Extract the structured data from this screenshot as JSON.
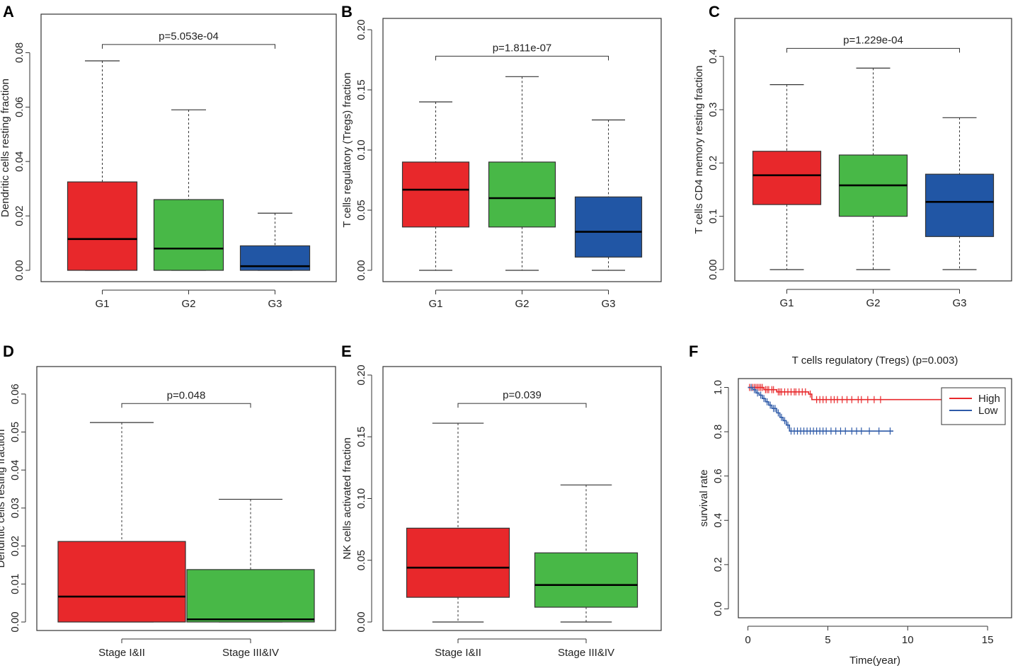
{
  "figure": {
    "panels": [
      {
        "letter": "A"
      },
      {
        "letter": "B"
      },
      {
        "letter": "C"
      },
      {
        "letter": "D"
      },
      {
        "letter": "E"
      },
      {
        "letter": "F"
      }
    ]
  },
  "colors": {
    "red": "#e8282b",
    "green": "#48b847",
    "blue": "#2156a5",
    "line_high": "#e8282b",
    "line_low": "#2e5aa8"
  },
  "chart_data": [
    {
      "panel": "A",
      "type": "box",
      "ylabel": "Dendritic cells resting fraction",
      "ylim": [
        0,
        0.09
      ],
      "yticks": [
        0.0,
        0.02,
        0.04,
        0.06,
        0.08
      ],
      "ytick_labels": [
        "0.00",
        "0.02",
        "0.04",
        "0.06",
        "0.08"
      ],
      "categories": [
        "G1",
        "G2",
        "G3"
      ],
      "boxes": [
        {
          "q1": 0.0,
          "median": 0.0115,
          "q3": 0.0325,
          "whisker_low": 0.0,
          "whisker_high": 0.077,
          "color": "red"
        },
        {
          "q1": 0.0,
          "median": 0.008,
          "q3": 0.026,
          "whisker_low": 0.0,
          "whisker_high": 0.059,
          "color": "green"
        },
        {
          "q1": 0.0,
          "median": 0.0015,
          "q3": 0.009,
          "whisker_low": 0.0,
          "whisker_high": 0.021,
          "color": "blue"
        }
      ],
      "pvalue": "p=5.053e-04",
      "bracket_y": 0.083,
      "bracket_from": 0,
      "bracket_to": 2
    },
    {
      "panel": "B",
      "type": "box",
      "ylabel": "T cells regulatory (Tregs) fraction",
      "ylim": [
        0,
        0.2
      ],
      "yticks": [
        0.0,
        0.05,
        0.1,
        0.15,
        0.2
      ],
      "ytick_labels": [
        "0.00",
        "0.05",
        "0.10",
        "0.15",
        "0.20"
      ],
      "categories": [
        "G1",
        "G2",
        "G3"
      ],
      "boxes": [
        {
          "q1": 0.036,
          "median": 0.067,
          "q3": 0.09,
          "whisker_low": 0.0,
          "whisker_high": 0.14,
          "color": "red"
        },
        {
          "q1": 0.036,
          "median": 0.06,
          "q3": 0.09,
          "whisker_low": 0.0,
          "whisker_high": 0.161,
          "color": "green"
        },
        {
          "q1": 0.011,
          "median": 0.032,
          "q3": 0.061,
          "whisker_low": 0.0,
          "whisker_high": 0.125,
          "color": "blue"
        }
      ],
      "pvalue": "p=1.811e-07",
      "bracket_y": 0.178,
      "bracket_from": 0,
      "bracket_to": 2
    },
    {
      "panel": "C",
      "type": "box",
      "ylabel": "T cells CD4 memory resting fraction",
      "ylim": [
        0,
        0.45
      ],
      "yticks": [
        0.0,
        0.1,
        0.2,
        0.3,
        0.4
      ],
      "ytick_labels": [
        "0.00",
        "0.1",
        "0.2",
        "0.3",
        "0.4"
      ],
      "categories": [
        "G1",
        "G2",
        "G3"
      ],
      "boxes": [
        {
          "q1": 0.122,
          "median": 0.177,
          "q3": 0.222,
          "whisker_low": 0.0,
          "whisker_high": 0.347,
          "color": "red"
        },
        {
          "q1": 0.1,
          "median": 0.158,
          "q3": 0.215,
          "whisker_low": 0.0,
          "whisker_high": 0.378,
          "color": "green"
        },
        {
          "q1": 0.062,
          "median": 0.127,
          "q3": 0.179,
          "whisker_low": 0.0,
          "whisker_high": 0.285,
          "color": "blue"
        }
      ],
      "pvalue": "p=1.229e-04",
      "bracket_y": 0.415,
      "bracket_from": 0,
      "bracket_to": 2
    },
    {
      "panel": "D",
      "type": "box",
      "ylabel": "Dendritic cells resting fraction",
      "ylim": [
        0,
        0.065
      ],
      "yticks": [
        0.0,
        0.01,
        0.02,
        0.03,
        0.04,
        0.05,
        0.06
      ],
      "ytick_labels": [
        "0.00",
        "0.01",
        "0.02",
        "0.03",
        "0.04",
        "0.05",
        "0.06"
      ],
      "categories": [
        "Stage I&II",
        "Stage III&IV"
      ],
      "boxes": [
        {
          "q1": 0.0,
          "median": 0.0067,
          "q3": 0.0212,
          "whisker_low": 0.0,
          "whisker_high": 0.0525,
          "color": "red"
        },
        {
          "q1": 0.0,
          "median": 0.0007,
          "q3": 0.0138,
          "whisker_low": 0.0,
          "whisker_high": 0.0323,
          "color": "green"
        }
      ],
      "pvalue": "p=0.048",
      "bracket_y": 0.0575,
      "bracket_from": 0,
      "bracket_to": 1
    },
    {
      "panel": "E",
      "type": "box",
      "ylabel": "NK cells activated fraction",
      "ylim": [
        0,
        0.2
      ],
      "yticks": [
        0.0,
        0.05,
        0.1,
        0.15,
        0.2
      ],
      "ytick_labels": [
        "0.00",
        "0.05",
        "0.10",
        "0.15",
        "0.20"
      ],
      "categories": [
        "Stage I&II",
        "Stage III&IV"
      ],
      "boxes": [
        {
          "q1": 0.02,
          "median": 0.044,
          "q3": 0.076,
          "whisker_low": 0.0,
          "whisker_high": 0.161,
          "color": "red"
        },
        {
          "q1": 0.012,
          "median": 0.03,
          "q3": 0.056,
          "whisker_low": 0.0,
          "whisker_high": 0.111,
          "color": "green"
        }
      ],
      "pvalue": "p=0.039",
      "bracket_y": 0.177,
      "bracket_from": 0,
      "bracket_to": 1
    },
    {
      "panel": "F",
      "type": "line",
      "title": "T cells regulatory (Tregs) (p=0.003)",
      "xlabel": "Time(year)",
      "ylabel": "survival rate",
      "xlim": [
        -0.6,
        16.5
      ],
      "ylim": [
        -0.04,
        1.04
      ],
      "xticks": [
        0,
        5,
        10,
        15
      ],
      "xtick_labels": [
        "0",
        "5",
        "10",
        "15"
      ],
      "yticks": [
        0.0,
        0.2,
        0.4,
        0.6,
        0.8,
        1.0
      ],
      "ytick_labels": [
        "0.0",
        "0.2",
        "0.4",
        "0.6",
        "0.8",
        "1.0"
      ],
      "legend": {
        "position": "top-right",
        "entries": [
          "High",
          "Low"
        ]
      },
      "series": [
        {
          "name": "High",
          "color": "line_high",
          "steps": [
            [
              0,
              1.0
            ],
            [
              1.0,
              0.99
            ],
            [
              1.8,
              0.98
            ],
            [
              3.8,
              0.97
            ],
            [
              4.0,
              0.945
            ],
            [
              12.9,
              0.945
            ]
          ],
          "censor": [
            0.1,
            0.2,
            0.3,
            0.4,
            0.5,
            0.6,
            0.7,
            0.8,
            0.9,
            1.1,
            1.2,
            1.3,
            1.5,
            1.6,
            1.9,
            2.0,
            2.1,
            2.3,
            2.5,
            2.7,
            2.9,
            3.0,
            3.2,
            3.4,
            3.6,
            3.9,
            4.3,
            4.5,
            4.7,
            4.9,
            5.2,
            5.4,
            5.6,
            5.9,
            6.2,
            6.5,
            6.9,
            7.1,
            7.5,
            7.9,
            8.3
          ]
        },
        {
          "name": "Low",
          "color": "line_low",
          "steps": [
            [
              0,
              1.0
            ],
            [
              0.3,
              0.99
            ],
            [
              0.5,
              0.975
            ],
            [
              0.7,
              0.965
            ],
            [
              0.9,
              0.95
            ],
            [
              1.1,
              0.935
            ],
            [
              1.3,
              0.92
            ],
            [
              1.5,
              0.905
            ],
            [
              1.8,
              0.885
            ],
            [
              2.0,
              0.865
            ],
            [
              2.2,
              0.85
            ],
            [
              2.4,
              0.83
            ],
            [
              2.6,
              0.803
            ],
            [
              9.1,
              0.803
            ]
          ],
          "censor": [
            0.2,
            0.4,
            0.6,
            0.8,
            1.0,
            1.2,
            1.4,
            1.6,
            1.7,
            1.9,
            2.1,
            2.3,
            2.5,
            2.7,
            2.9,
            3.1,
            3.3,
            3.5,
            3.7,
            3.9,
            4.1,
            4.3,
            4.5,
            4.7,
            4.9,
            5.2,
            5.5,
            5.8,
            6.1,
            6.5,
            6.8,
            7.1,
            7.6,
            8.2,
            8.9
          ]
        }
      ]
    }
  ]
}
